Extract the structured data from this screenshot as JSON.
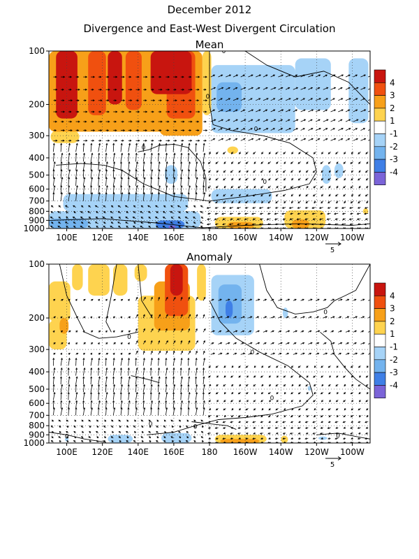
{
  "title": "December 2012",
  "subtitle": "Divergence and East-West Divergent Circulation",
  "colors": {
    "pos4": "#c8150f",
    "pos3": "#f0500f",
    "pos2": "#f7a019",
    "pos1": "#fed34f",
    "neg1": "#a6d3f7",
    "neg2": "#73b3ee",
    "neg3": "#3f7fe6",
    "neg4": "#7b64d8",
    "contour": "#000000",
    "grid": "#444444"
  },
  "chart_data": [
    {
      "type": "heatmap",
      "title": "Mean",
      "x_tick_labels": [
        "100E",
        "120E",
        "140E",
        "160E",
        "180",
        "160W",
        "140W",
        "120W",
        "100W"
      ],
      "x_ticks_deg_east": [
        100,
        120,
        140,
        160,
        180,
        200,
        220,
        240,
        260
      ],
      "xlim_deg_east": [
        90,
        270
      ],
      "y_tick_labels": [
        "100",
        "200",
        "300",
        "400",
        "500",
        "600",
        "700",
        "800",
        "900",
        "1000"
      ],
      "y_ticks_hPa": [
        100,
        200,
        300,
        400,
        500,
        600,
        700,
        800,
        900,
        1000
      ],
      "ylim_hPa": [
        100,
        1000
      ],
      "y_scale": "log-pressure",
      "grid": true,
      "colorbar_labels": [
        "4",
        "3",
        "2",
        "1",
        "-1",
        "-2",
        "-3",
        "-4"
      ],
      "vector_reference": "5",
      "regions": [
        {
          "x": [
            90,
            158
          ],
          "p": [
            100,
            285
          ],
          "level": 2
        },
        {
          "x": [
            94,
            106
          ],
          "p": [
            100,
            240
          ],
          "level": 4
        },
        {
          "x": [
            112,
            122
          ],
          "p": [
            100,
            230
          ],
          "level": 3
        },
        {
          "x": [
            123,
            131
          ],
          "p": [
            100,
            200
          ],
          "level": 4
        },
        {
          "x": [
            133,
            142
          ],
          "p": [
            100,
            215
          ],
          "level": 3
        },
        {
          "x": [
            147,
            170
          ],
          "p": [
            100,
            175
          ],
          "level": 4
        },
        {
          "x": [
            152,
            176
          ],
          "p": [
            100,
            300
          ],
          "level": 2
        },
        {
          "x": [
            156,
            172
          ],
          "p": [
            100,
            240
          ],
          "level": 3
        },
        {
          "x": [
            176,
            181
          ],
          "p": [
            100,
            230
          ],
          "level": 1
        },
        {
          "x": [
            91,
            107
          ],
          "p": [
            280,
            330
          ],
          "level": 1
        },
        {
          "x": [
            181,
            228
          ],
          "p": [
            120,
            290
          ],
          "level": -1
        },
        {
          "x": [
            184,
            198
          ],
          "p": [
            150,
            220
          ],
          "level": -2
        },
        {
          "x": [
            228,
            248
          ],
          "p": [
            110,
            215
          ],
          "level": -1
        },
        {
          "x": [
            258,
            269
          ],
          "p": [
            110,
            255
          ],
          "level": -1
        },
        {
          "x": [
            190,
            196
          ],
          "p": [
            345,
            380
          ],
          "level": 1
        },
        {
          "x": [
            243,
            248
          ],
          "p": [
            440,
            560
          ],
          "level": -1
        },
        {
          "x": [
            250,
            255
          ],
          "p": [
            430,
            520
          ],
          "level": -1
        },
        {
          "x": [
            155,
            162
          ],
          "p": [
            440,
            560
          ],
          "level": -1
        },
        {
          "x": [
            181,
            215
          ],
          "p": [
            600,
            720
          ],
          "level": -1
        },
        {
          "x": [
            98,
            168
          ],
          "p": [
            640,
            800
          ],
          "level": -1
        },
        {
          "x": [
            90,
            175
          ],
          "p": [
            800,
            1000
          ],
          "level": -1
        },
        {
          "x": [
            90,
            112
          ],
          "p": [
            880,
            1000
          ],
          "level": -2
        },
        {
          "x": [
            150,
            166
          ],
          "p": [
            900,
            1000
          ],
          "level": -3
        },
        {
          "x": [
            157,
            161
          ],
          "p": [
            960,
            1000
          ],
          "level": -4
        },
        {
          "x": [
            183,
            210
          ],
          "p": [
            860,
            1000
          ],
          "level": 1
        },
        {
          "x": [
            190,
            205
          ],
          "p": [
            920,
            1000
          ],
          "level": 2
        },
        {
          "x": [
            222,
            245
          ],
          "p": [
            790,
            1000
          ],
          "level": 1
        },
        {
          "x": [
            226,
            236
          ],
          "p": [
            890,
            1000
          ],
          "level": 2
        },
        {
          "x": [
            266,
            269
          ],
          "p": [
            770,
            830
          ],
          "level": 1
        }
      ],
      "contour_zero_labels": [
        {
          "x": 188,
          "p": 100,
          "text": "0"
        },
        {
          "x": 206,
          "p": 275,
          "text": "0"
        },
        {
          "x": 143,
          "p": 350,
          "text": "0"
        },
        {
          "x": 179,
          "p": 180,
          "text": "0"
        },
        {
          "x": 211,
          "p": 545,
          "text": "0"
        }
      ],
      "contours": [
        [
          [
            180,
            100
          ],
          [
            180,
            200
          ],
          [
            182,
            260
          ],
          [
            192,
            280
          ],
          [
            210,
            300
          ],
          [
            225,
            330
          ],
          [
            238,
            400
          ],
          [
            240,
            480
          ],
          [
            236,
            560
          ],
          [
            222,
            610
          ],
          [
            200,
            660
          ],
          [
            180,
            700
          ],
          [
            160,
            660
          ],
          [
            143,
            560
          ],
          [
            131,
            470
          ],
          [
            121,
            440
          ],
          [
            108,
            430
          ],
          [
            94,
            440
          ]
        ],
        [
          [
            140,
            370
          ],
          [
            146,
            360
          ],
          [
            152,
            340
          ],
          [
            160,
            335
          ],
          [
            168,
            350
          ],
          [
            175,
            420
          ],
          [
            178,
            520
          ],
          [
            178,
            620
          ]
        ],
        [
          [
            200,
            100
          ],
          [
            212,
            120
          ],
          [
            228,
            140
          ],
          [
            244,
            130
          ],
          [
            258,
            150
          ],
          [
            270,
            200
          ]
        ],
        [
          [
            90,
            900
          ],
          [
            120,
            880
          ],
          [
            150,
            930
          ],
          [
            176,
            990
          ],
          [
            200,
            960
          ],
          [
            230,
            940
          ],
          [
            260,
            960
          ],
          [
            270,
            940
          ]
        ]
      ],
      "vector_rows_hPa": [
        140,
        165,
        190,
        220,
        250,
        280,
        320,
        370,
        420,
        470,
        520,
        575,
        640,
        700,
        760,
        820,
        880,
        940,
        990
      ]
    },
    {
      "type": "heatmap",
      "title": "Anomaly",
      "x_tick_labels": [
        "100E",
        "120E",
        "140E",
        "160E",
        "180",
        "160W",
        "140W",
        "120W",
        "100W"
      ],
      "x_ticks_deg_east": [
        100,
        120,
        140,
        160,
        180,
        200,
        220,
        240,
        260
      ],
      "xlim_deg_east": [
        90,
        270
      ],
      "y_tick_labels": [
        "100",
        "200",
        "300",
        "400",
        "500",
        "600",
        "700",
        "800",
        "900",
        "1000"
      ],
      "y_ticks_hPa": [
        100,
        200,
        300,
        400,
        500,
        600,
        700,
        800,
        900,
        1000
      ],
      "ylim_hPa": [
        100,
        1000
      ],
      "y_scale": "log-pressure",
      "grid": true,
      "colorbar_labels": [
        "4",
        "3",
        "2",
        "1",
        "-1",
        "-2",
        "-3",
        "-4"
      ],
      "vector_reference": "5",
      "regions": [
        {
          "x": [
            90,
            102
          ],
          "p": [
            125,
            210
          ],
          "level": 1
        },
        {
          "x": [
            90,
            100
          ],
          "p": [
            205,
            300
          ],
          "level": 1
        },
        {
          "x": [
            96,
            101
          ],
          "p": [
            200,
            245
          ],
          "level": 2
        },
        {
          "x": [
            103,
            109
          ],
          "p": [
            100,
            140
          ],
          "level": 1
        },
        {
          "x": [
            112,
            124
          ],
          "p": [
            100,
            150
          ],
          "level": 1
        },
        {
          "x": [
            126,
            134
          ],
          "p": [
            100,
            150
          ],
          "level": 1
        },
        {
          "x": [
            138,
            145
          ],
          "p": [
            100,
            125
          ],
          "level": 1
        },
        {
          "x": [
            140,
            172
          ],
          "p": [
            150,
            305
          ],
          "level": 1
        },
        {
          "x": [
            149,
            169
          ],
          "p": [
            125,
            235
          ],
          "level": 2
        },
        {
          "x": [
            155,
            168
          ],
          "p": [
            100,
            195
          ],
          "level": 3
        },
        {
          "x": [
            158,
            165
          ],
          "p": [
            100,
            150
          ],
          "level": 4
        },
        {
          "x": [
            173,
            178
          ],
          "p": [
            100,
            160
          ],
          "level": 1
        },
        {
          "x": [
            181,
            205
          ],
          "p": [
            115,
            250
          ],
          "level": -1
        },
        {
          "x": [
            185,
            198
          ],
          "p": [
            130,
            215
          ],
          "level": -2
        },
        {
          "x": [
            189,
            193
          ],
          "p": [
            160,
            200
          ],
          "level": -3
        },
        {
          "x": [
            221,
            224
          ],
          "p": [
            175,
            200
          ],
          "level": -1
        },
        {
          "x": [
            235,
            237
          ],
          "p": [
            480,
            510
          ],
          "level": -1
        },
        {
          "x": [
            99,
            101
          ],
          "p": [
            930,
            980
          ],
          "level": -1
        },
        {
          "x": [
            123,
            137
          ],
          "p": [
            900,
            1000
          ],
          "level": -1
        },
        {
          "x": [
            153,
            170
          ],
          "p": [
            880,
            1000
          ],
          "level": -1
        },
        {
          "x": [
            183,
            212
          ],
          "p": [
            900,
            1000
          ],
          "level": 1
        },
        {
          "x": [
            186,
            208
          ],
          "p": [
            950,
            1000
          ],
          "level": 2
        },
        {
          "x": [
            220,
            224
          ],
          "p": [
            910,
            1000
          ],
          "level": 1
        },
        {
          "x": [
            241,
            246
          ],
          "p": [
            920,
            960
          ],
          "level": -1
        }
      ],
      "contour_zero_labels": [
        {
          "x": 135,
          "p": 255,
          "text": "0"
        },
        {
          "x": 204,
          "p": 310,
          "text": "0"
        },
        {
          "x": 245,
          "p": 185,
          "text": "0"
        },
        {
          "x": 215,
          "p": 560,
          "text": "0"
        },
        {
          "x": 147,
          "p": 780,
          "text": "0"
        },
        {
          "x": 100,
          "p": 920,
          "text": "0"
        },
        {
          "x": 252,
          "p": 910,
          "text": "0"
        },
        {
          "x": 172,
          "p": 810,
          "text": "0"
        }
      ],
      "contours": [
        [
          [
            96,
            100
          ],
          [
            100,
            150
          ],
          [
            106,
            200
          ],
          [
            110,
            240
          ],
          [
            118,
            260
          ],
          [
            128,
            255
          ],
          [
            140,
            240
          ]
        ],
        [
          [
            128,
            100
          ],
          [
            125,
            150
          ],
          [
            122,
            210
          ],
          [
            125,
            240
          ]
        ],
        [
          [
            140,
            100
          ],
          [
            142,
            160
          ],
          [
            148,
            200
          ]
        ],
        [
          [
            180,
            160
          ],
          [
            186,
            210
          ],
          [
            195,
            260
          ],
          [
            208,
            310
          ],
          [
            224,
            370
          ],
          [
            236,
            460
          ],
          [
            238,
            540
          ],
          [
            232,
            620
          ],
          [
            215,
            690
          ],
          [
            200,
            720
          ],
          [
            185,
            740
          ],
          [
            172,
            800
          ],
          [
            160,
            870
          ],
          [
            145,
            900
          ]
        ],
        [
          [
            136,
            420
          ],
          [
            145,
            440
          ],
          [
            152,
            460
          ]
        ],
        [
          [
            208,
            100
          ],
          [
            212,
            140
          ],
          [
            218,
            175
          ],
          [
            228,
            190
          ],
          [
            238,
            185
          ],
          [
            246,
            175
          ],
          [
            250,
            160
          ],
          [
            256,
            150
          ],
          [
            262,
            140
          ],
          [
            270,
            100
          ]
        ],
        [
          [
            242,
            240
          ],
          [
            248,
            270
          ],
          [
            250,
            320
          ],
          [
            256,
            380
          ],
          [
            262,
            440
          ],
          [
            270,
            500
          ]
        ],
        [
          [
            90,
            870
          ],
          [
            100,
            900
          ],
          [
            110,
            950
          ],
          [
            122,
            990
          ]
        ],
        [
          [
            240,
            900
          ],
          [
            252,
            880
          ],
          [
            262,
            920
          ],
          [
            270,
            950
          ]
        ],
        [
          [
            170,
            760
          ],
          [
            180,
            780
          ],
          [
            190,
            800
          ],
          [
            195,
            840
          ]
        ]
      ],
      "vector_rows_hPa": [
        160,
        200,
        240,
        280,
        320,
        370,
        420,
        470,
        520,
        575,
        640,
        700,
        760,
        820,
        880,
        940,
        990
      ]
    }
  ]
}
